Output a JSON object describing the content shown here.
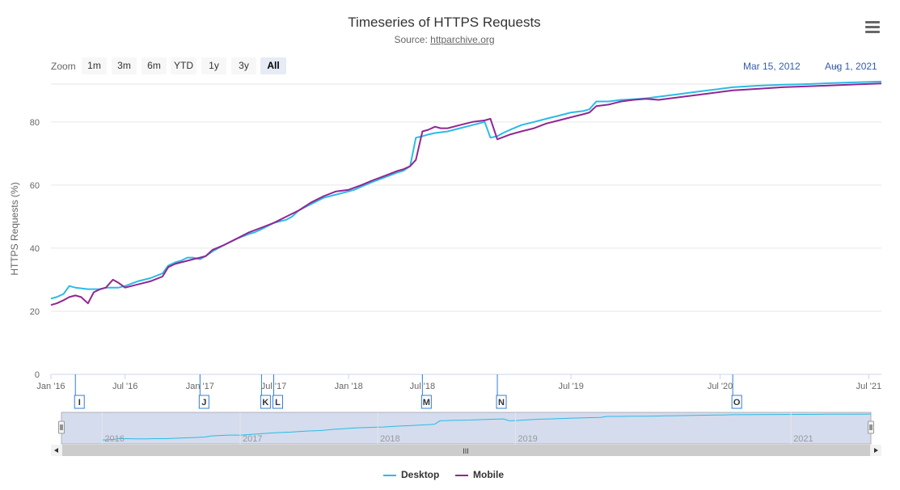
{
  "header": {
    "title": "Timeseries of HTTPS Requests",
    "subtitle_prefix": "Source: ",
    "subtitle_link": "httparchive.org"
  },
  "zoom": {
    "label": "Zoom",
    "buttons": [
      "1m",
      "3m",
      "6m",
      "YTD",
      "1y",
      "3y",
      "All"
    ],
    "active": "All"
  },
  "range": {
    "from": "Mar 15, 2012",
    "arrow": "→",
    "to": "Aug 1, 2021"
  },
  "colors": {
    "desktop": "#2bbbe6",
    "mobile": "#912693",
    "grid": "#e6e6e6",
    "navigator_mask": "#ccd6eb"
  },
  "chart_data": {
    "type": "line",
    "title": "Timeseries of HTTPS Requests",
    "subtitle": "Source: httparchive.org",
    "xlabel": "",
    "ylabel": "HTTPS Requests (%)",
    "ylim": [
      0,
      92
    ],
    "yticks": [
      0,
      20,
      40,
      60,
      80
    ],
    "xlim": [
      "2016-01-01",
      "2021-08-01"
    ],
    "xticks": [
      {
        "date": "2016-01-01",
        "label": "Jan '16"
      },
      {
        "date": "2016-07-01",
        "label": "Jul '16"
      },
      {
        "date": "2017-01-01",
        "label": "Jan '17"
      },
      {
        "date": "2017-07-01",
        "label": "Jul '17"
      },
      {
        "date": "2018-01-01",
        "label": "Jan '18"
      },
      {
        "date": "2018-07-01",
        "label": "Jul '18"
      },
      {
        "date": "2019-07-01",
        "label": "Jul '19"
      },
      {
        "date": "2020-07-01",
        "label": "Jul '20"
      },
      {
        "date": "2021-07-01",
        "label": "Jul '21"
      }
    ],
    "grid": true,
    "legend": "bottom-center",
    "series": [
      {
        "name": "Desktop",
        "color": "#2bbbe6",
        "points": [
          [
            "2016-01-01",
            24
          ],
          [
            "2016-01-15",
            24.5
          ],
          [
            "2016-02-01",
            25.5
          ],
          [
            "2016-02-15",
            28
          ],
          [
            "2016-03-01",
            27.5
          ],
          [
            "2016-04-01",
            27
          ],
          [
            "2016-05-01",
            27
          ],
          [
            "2016-05-15",
            27.5
          ],
          [
            "2016-06-01",
            27.5
          ],
          [
            "2016-06-15",
            27.5
          ],
          [
            "2016-07-01",
            28
          ],
          [
            "2016-08-01",
            29.5
          ],
          [
            "2016-09-01",
            30.5
          ],
          [
            "2016-10-01",
            32
          ],
          [
            "2016-10-15",
            34.5
          ],
          [
            "2016-11-01",
            35.5
          ],
          [
            "2016-11-15",
            36
          ],
          [
            "2016-12-01",
            37
          ],
          [
            "2016-12-15",
            37
          ],
          [
            "2017-01-01",
            36.5
          ],
          [
            "2017-01-15",
            37.5
          ],
          [
            "2017-02-01",
            39
          ],
          [
            "2017-02-15",
            40
          ],
          [
            "2017-03-01",
            41
          ],
          [
            "2017-04-01",
            43
          ],
          [
            "2017-05-01",
            44.5
          ],
          [
            "2017-05-15",
            45
          ],
          [
            "2017-06-01",
            46
          ],
          [
            "2017-07-01",
            48
          ],
          [
            "2017-08-01",
            49
          ],
          [
            "2017-08-15",
            50
          ],
          [
            "2017-09-01",
            52
          ],
          [
            "2017-10-01",
            54
          ],
          [
            "2017-11-01",
            56
          ],
          [
            "2017-12-01",
            57
          ],
          [
            "2018-01-01",
            58
          ],
          [
            "2018-01-15",
            58.5
          ],
          [
            "2018-02-01",
            59.5
          ],
          [
            "2018-03-01",
            61
          ],
          [
            "2018-04-01",
            62.5
          ],
          [
            "2018-05-01",
            64
          ],
          [
            "2018-05-15",
            64.5
          ],
          [
            "2018-06-01",
            66
          ],
          [
            "2018-06-15",
            75
          ],
          [
            "2018-07-01",
            75.5
          ],
          [
            "2018-07-15",
            76
          ],
          [
            "2018-08-01",
            76.5
          ],
          [
            "2018-09-01",
            77
          ],
          [
            "2018-10-01",
            78
          ],
          [
            "2018-11-01",
            79
          ],
          [
            "2018-12-01",
            80
          ],
          [
            "2018-12-15",
            75
          ],
          [
            "2019-01-01",
            75.5
          ],
          [
            "2019-01-15",
            76.5
          ],
          [
            "2019-02-01",
            77.5
          ],
          [
            "2019-03-01",
            79
          ],
          [
            "2019-04-01",
            80
          ],
          [
            "2019-05-01",
            81
          ],
          [
            "2019-06-01",
            82
          ],
          [
            "2019-07-01",
            83
          ],
          [
            "2019-08-01",
            83.5
          ],
          [
            "2019-08-15",
            84
          ],
          [
            "2019-09-01",
            86.5
          ],
          [
            "2019-10-01",
            86.5
          ],
          [
            "2019-11-01",
            87
          ],
          [
            "2019-12-01",
            87.2
          ],
          [
            "2020-01-01",
            87.5
          ],
          [
            "2020-02-01",
            88
          ],
          [
            "2020-03-01",
            88.5
          ],
          [
            "2020-04-01",
            89
          ],
          [
            "2020-05-01",
            89.5
          ],
          [
            "2020-06-01",
            90
          ],
          [
            "2020-07-01",
            90.5
          ],
          [
            "2020-08-01",
            91
          ],
          [
            "2020-10-01",
            91.5
          ],
          [
            "2020-12-01",
            91.8
          ],
          [
            "2021-02-01",
            92
          ],
          [
            "2021-04-01",
            92.3
          ],
          [
            "2021-06-01",
            92.6
          ],
          [
            "2021-08-01",
            92.8
          ]
        ]
      },
      {
        "name": "Mobile",
        "color": "#912693",
        "points": [
          [
            "2016-01-01",
            22
          ],
          [
            "2016-01-15",
            22.5
          ],
          [
            "2016-02-01",
            23.5
          ],
          [
            "2016-02-15",
            24.5
          ],
          [
            "2016-03-01",
            25
          ],
          [
            "2016-03-15",
            24.5
          ],
          [
            "2016-04-01",
            22.5
          ],
          [
            "2016-04-15",
            26
          ],
          [
            "2016-05-01",
            27
          ],
          [
            "2016-05-15",
            27.5
          ],
          [
            "2016-06-01",
            30
          ],
          [
            "2016-06-15",
            29
          ],
          [
            "2016-07-01",
            27.5
          ],
          [
            "2016-08-01",
            28.5
          ],
          [
            "2016-09-01",
            29.5
          ],
          [
            "2016-10-01",
            31
          ],
          [
            "2016-10-15",
            34
          ],
          [
            "2016-11-01",
            35
          ],
          [
            "2016-11-15",
            35.5
          ],
          [
            "2016-12-01",
            36
          ],
          [
            "2016-12-15",
            36.5
          ],
          [
            "2017-01-01",
            37
          ],
          [
            "2017-01-15",
            37.5
          ],
          [
            "2017-02-01",
            39.5
          ],
          [
            "2017-03-01",
            41
          ],
          [
            "2017-04-01",
            43
          ],
          [
            "2017-05-01",
            45
          ],
          [
            "2017-06-01",
            46.5
          ],
          [
            "2017-07-01",
            48
          ],
          [
            "2017-08-01",
            50
          ],
          [
            "2017-09-01",
            52
          ],
          [
            "2017-10-01",
            54.5
          ],
          [
            "2017-11-01",
            56.5
          ],
          [
            "2017-12-01",
            58
          ],
          [
            "2018-01-01",
            58.5
          ],
          [
            "2018-02-01",
            60
          ],
          [
            "2018-03-01",
            61.5
          ],
          [
            "2018-04-01",
            63
          ],
          [
            "2018-05-01",
            64.5
          ],
          [
            "2018-05-15",
            65
          ],
          [
            "2018-06-01",
            66
          ],
          [
            "2018-06-15",
            68
          ],
          [
            "2018-07-01",
            77
          ],
          [
            "2018-07-15",
            77.5
          ],
          [
            "2018-08-01",
            78.5
          ],
          [
            "2018-08-15",
            78
          ],
          [
            "2018-09-01",
            78
          ],
          [
            "2018-10-01",
            79
          ],
          [
            "2018-11-01",
            80
          ],
          [
            "2018-12-01",
            80.5
          ],
          [
            "2018-12-15",
            81
          ],
          [
            "2019-01-01",
            74.5
          ],
          [
            "2019-02-01",
            76
          ],
          [
            "2019-03-01",
            77
          ],
          [
            "2019-04-01",
            78
          ],
          [
            "2019-05-01",
            79.5
          ],
          [
            "2019-06-01",
            80.5
          ],
          [
            "2019-07-01",
            81.5
          ],
          [
            "2019-08-01",
            82.5
          ],
          [
            "2019-08-15",
            83
          ],
          [
            "2019-09-01",
            85
          ],
          [
            "2019-10-01",
            85.5
          ],
          [
            "2019-11-01",
            86.5
          ],
          [
            "2019-12-01",
            87
          ],
          [
            "2020-01-01",
            87.3
          ],
          [
            "2020-02-01",
            87
          ],
          [
            "2020-03-01",
            87.5
          ],
          [
            "2020-04-01",
            88
          ],
          [
            "2020-05-01",
            88.5
          ],
          [
            "2020-06-01",
            89
          ],
          [
            "2020-07-01",
            89.5
          ],
          [
            "2020-08-01",
            90
          ],
          [
            "2020-10-01",
            90.5
          ],
          [
            "2020-12-01",
            91
          ],
          [
            "2021-02-01",
            91.3
          ],
          [
            "2021-04-01",
            91.6
          ],
          [
            "2021-06-01",
            91.9
          ],
          [
            "2021-08-01",
            92.2
          ]
        ]
      }
    ],
    "flags": [
      {
        "date": "2016-03-01",
        "label": "I"
      },
      {
        "date": "2017-01-01",
        "label": "J"
      },
      {
        "date": "2017-06-01",
        "label": "K"
      },
      {
        "date": "2017-07-01",
        "label": "L"
      },
      {
        "date": "2018-07-01",
        "label": "M"
      },
      {
        "date": "2019-01-01",
        "label": "N"
      },
      {
        "date": "2020-08-01",
        "label": "O"
      }
    ],
    "navigator": {
      "labels": [
        "2016",
        "2017",
        "2018",
        "2019",
        "2021"
      ],
      "scroll_label": "III"
    }
  }
}
